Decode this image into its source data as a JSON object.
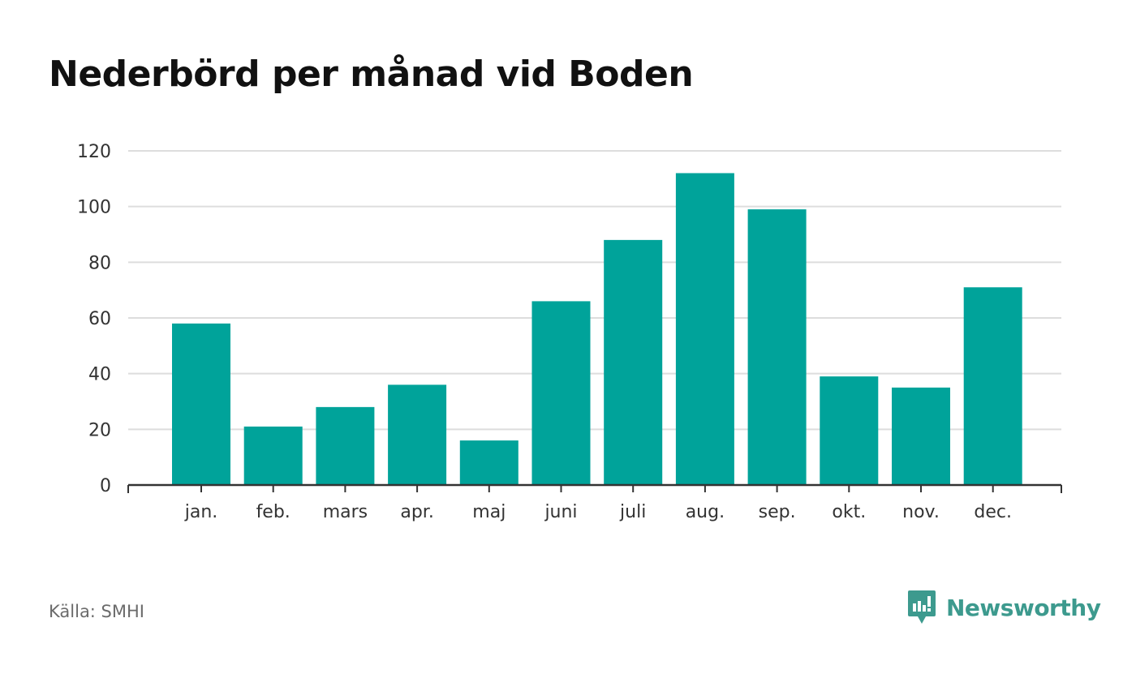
{
  "source": "Källa: SMHI",
  "brand": {
    "name": "Newsworthy",
    "color": "#3d9a8e",
    "icon": "newsworthy-logo-icon"
  },
  "colors": {
    "bar": "#00a39a",
    "grid": "#dddddd",
    "axis": "#333333",
    "tick_text": "#333333"
  },
  "chart_data": {
    "type": "bar",
    "title": "Nederbörd per månad vid Boden",
    "xlabel": "",
    "ylabel": "",
    "categories": [
      "jan.",
      "feb.",
      "mars",
      "apr.",
      "maj",
      "juni",
      "juli",
      "aug.",
      "sep.",
      "okt.",
      "nov.",
      "dec."
    ],
    "values": [
      58,
      21,
      28,
      36,
      16,
      66,
      88,
      112,
      99,
      39,
      35,
      71
    ],
    "ylim": [
      0,
      120
    ],
    "yticks": [
      0,
      20,
      40,
      60,
      80,
      100,
      120
    ],
    "grid": true,
    "legend": "none"
  }
}
